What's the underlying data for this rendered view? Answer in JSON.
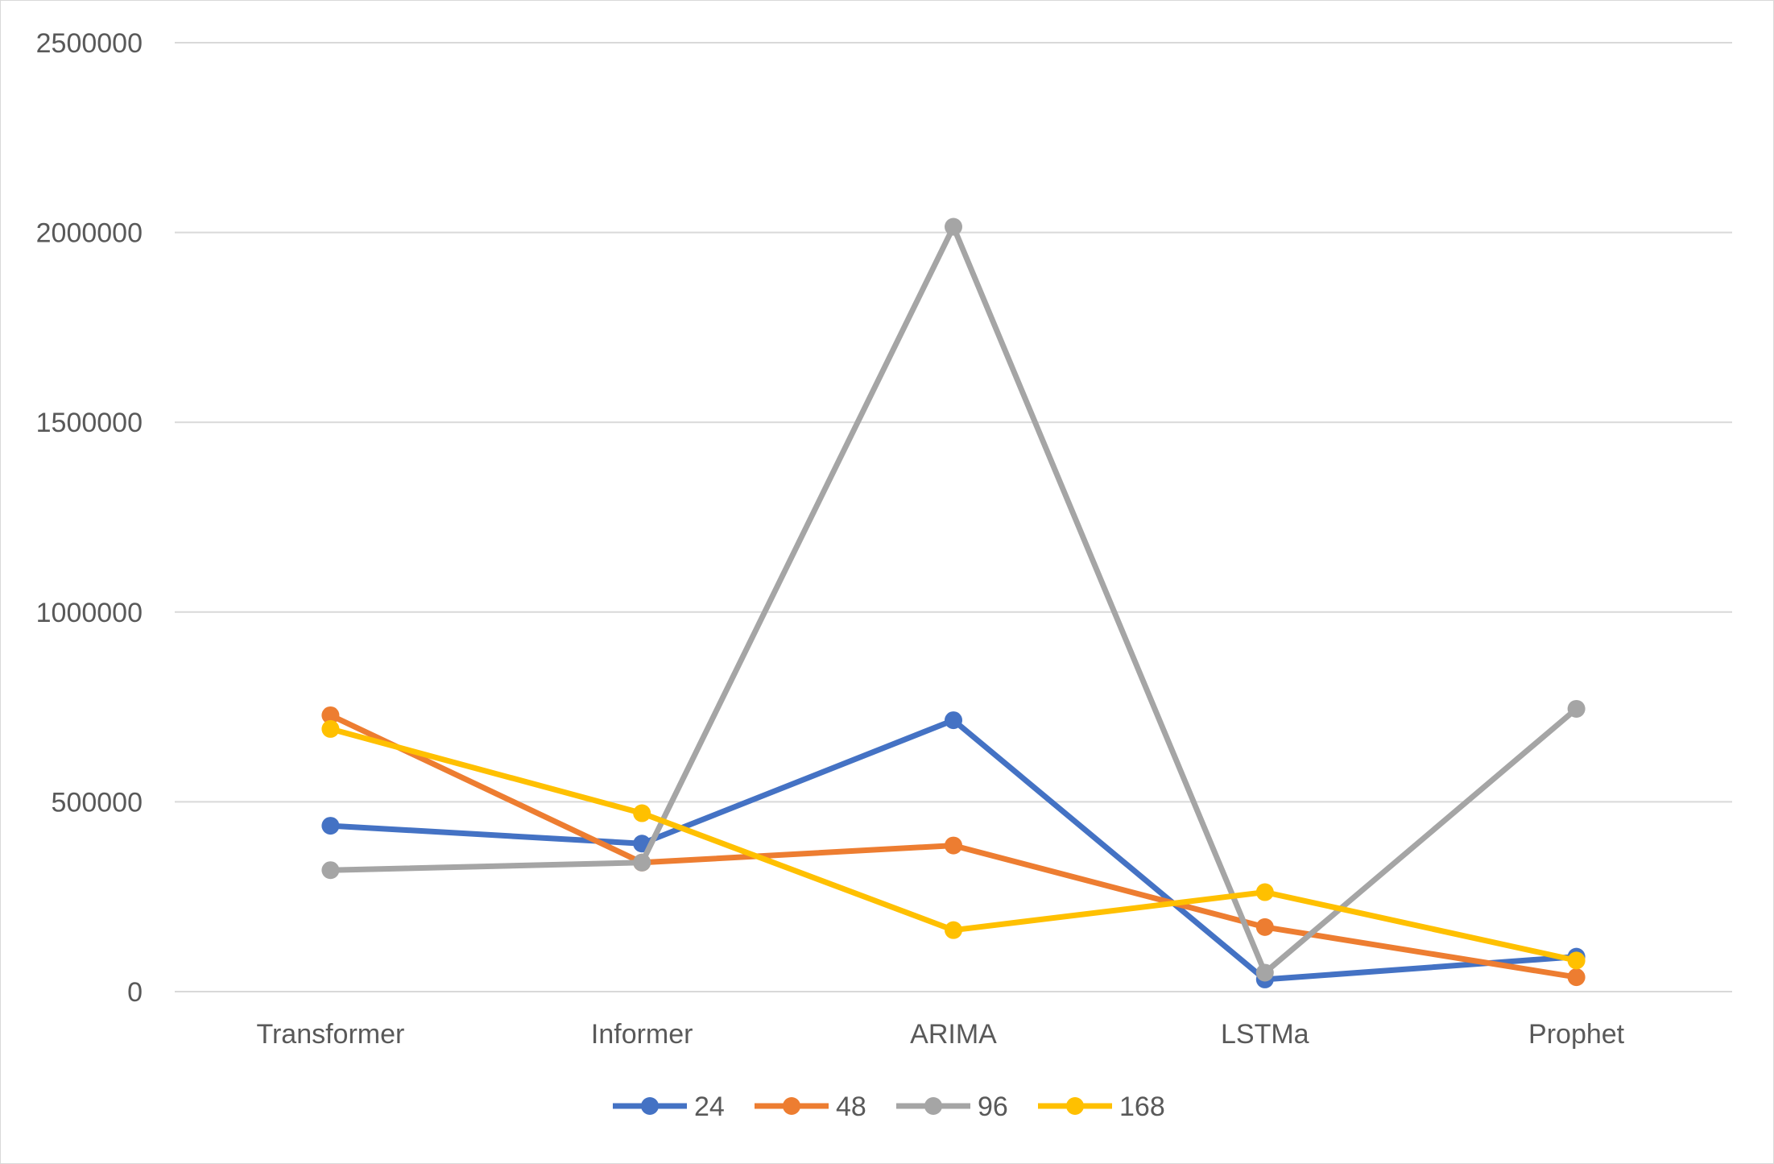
{
  "chart_data": {
    "type": "line",
    "title": "",
    "xlabel": "",
    "ylabel": "",
    "categories": [
      "Transformer",
      "Informer",
      "ARIMA",
      "LSTMa",
      "Prophet"
    ],
    "y_ticks": [
      "0",
      "500000",
      "1000000",
      "1500000",
      "2000000",
      "2500000"
    ],
    "ylim": [
      0,
      2500000
    ],
    "grid": true,
    "legend_position": "bottom",
    "series": [
      {
        "name": "24",
        "color": "#4472c4",
        "values": [
          437000,
          390000,
          715000,
          32000,
          92000
        ]
      },
      {
        "name": "48",
        "color": "#ed7d31",
        "values": [
          728000,
          340000,
          385000,
          170000,
          38000
        ]
      },
      {
        "name": "96",
        "color": "#a5a5a5",
        "values": [
          320000,
          340000,
          2015000,
          50000,
          745000
        ]
      },
      {
        "name": "168",
        "color": "#ffc000",
        "values": [
          692000,
          470000,
          162000,
          262000,
          82000
        ]
      }
    ]
  }
}
